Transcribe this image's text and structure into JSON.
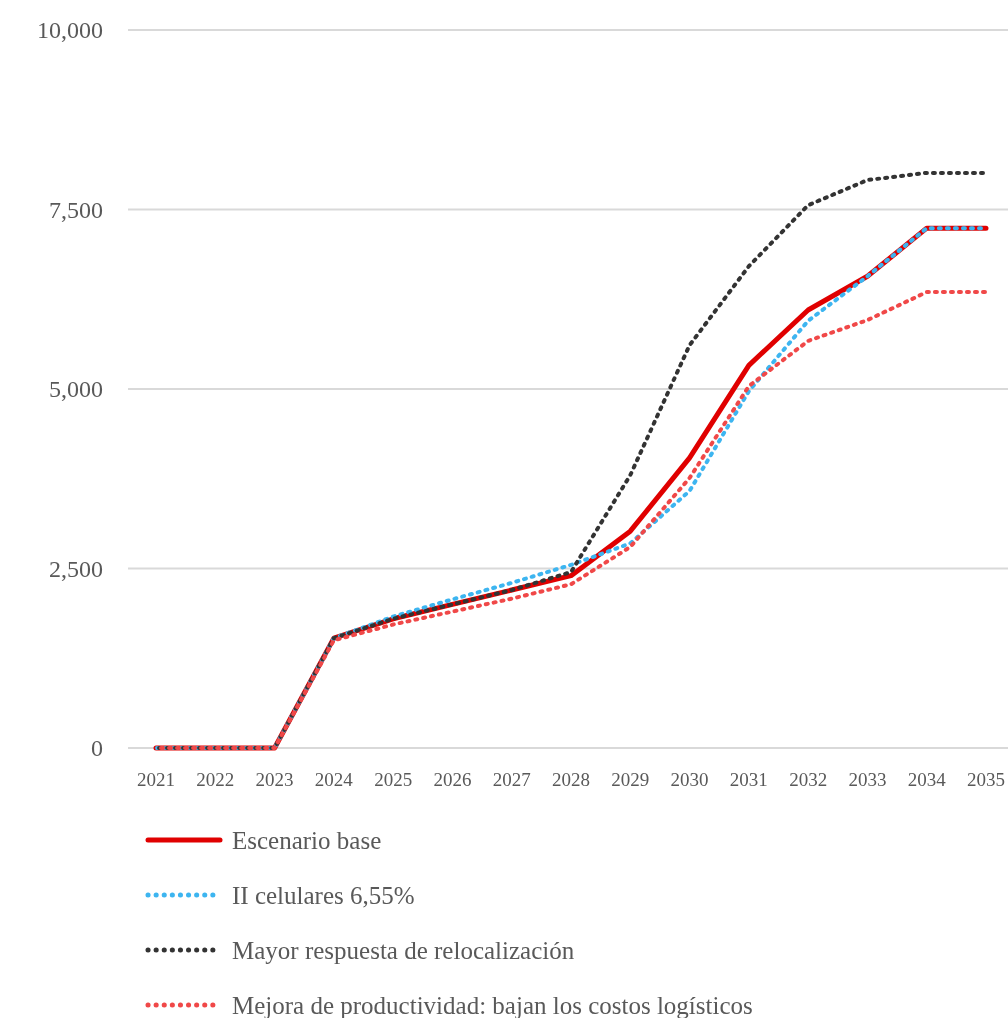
{
  "chart_data": {
    "type": "line",
    "categories": [
      "2021",
      "2022",
      "2023",
      "2024",
      "2025",
      "2026",
      "2027",
      "2028",
      "2029",
      "2030",
      "2031",
      "2032",
      "2033",
      "2034",
      "2035"
    ],
    "ylim": [
      0,
      10000
    ],
    "yticks": [
      {
        "value": 0,
        "label": "0"
      },
      {
        "value": 2500,
        "label": "2,500"
      },
      {
        "value": 5000,
        "label": "5,000"
      },
      {
        "value": 7500,
        "label": "7,500"
      },
      {
        "value": 10000,
        "label": "10,000"
      }
    ],
    "grid": "y",
    "legend": "bottom",
    "series": [
      {
        "name": "Escenario base",
        "color": "#e00000",
        "line_style": "solid",
        "values": [
          0,
          0,
          0,
          1530,
          1800,
          2000,
          2200,
          2400,
          3020,
          4040,
          5330,
          6100,
          6570,
          7240,
          7240
        ]
      },
      {
        "name": "II celulares 6,55%",
        "color": "#3db5f0",
        "line_style": "dotted",
        "values": [
          0,
          0,
          0,
          1530,
          1830,
          2070,
          2300,
          2550,
          2850,
          3580,
          4970,
          5950,
          6570,
          7240,
          7240
        ]
      },
      {
        "name": "Mayor respuesta de relocalización",
        "color": "#333333",
        "line_style": "dotted",
        "values": [
          0,
          0,
          0,
          1530,
          1800,
          2000,
          2200,
          2450,
          3800,
          5610,
          6710,
          7560,
          7910,
          8010,
          8010
        ]
      },
      {
        "name": "Mejora de productividad: bajan los costos logísticos",
        "color": "#f04848",
        "line_style": "dotted",
        "values": [
          0,
          0,
          0,
          1500,
          1720,
          1900,
          2080,
          2280,
          2800,
          3760,
          5040,
          5670,
          5960,
          6350,
          6350
        ]
      }
    ]
  }
}
